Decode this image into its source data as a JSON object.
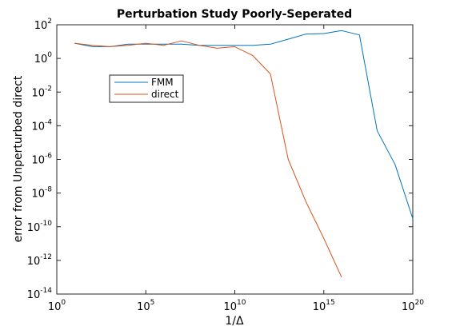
{
  "chart_data": {
    "type": "line",
    "title": "Perturbation Study Poorly-Seperated",
    "xlabel": "1/Δ",
    "ylabel": "error from Unperturbed direct",
    "x_scale": "log",
    "y_scale": "log",
    "xlim": [
      1,
      1e+20
    ],
    "ylim": [
      1e-14,
      100
    ],
    "x_ticks": [
      {
        "base": "10",
        "exp": "0",
        "value": 1
      },
      {
        "base": "10",
        "exp": "5",
        "value": 100000.0
      },
      {
        "base": "10",
        "exp": "10",
        "value": 10000000000.0
      },
      {
        "base": "10",
        "exp": "15",
        "value": 1000000000000000.0
      },
      {
        "base": "10",
        "exp": "20",
        "value": 1e+20
      }
    ],
    "y_ticks": [
      {
        "base": "10",
        "exp": "2",
        "value": 100
      },
      {
        "base": "10",
        "exp": "0",
        "value": 1
      },
      {
        "base": "10",
        "exp": "-2",
        "value": 0.01
      },
      {
        "base": "10",
        "exp": "-4",
        "value": 0.0001
      },
      {
        "base": "10",
        "exp": "-6",
        "value": 1e-06
      },
      {
        "base": "10",
        "exp": "-8",
        "value": 1e-08
      },
      {
        "base": "10",
        "exp": "-10",
        "value": 1e-10
      },
      {
        "base": "10",
        "exp": "-12",
        "value": 1e-12
      },
      {
        "base": "10",
        "exp": "-14",
        "value": 1e-14
      }
    ],
    "grid": false,
    "legend_position": "upper-left",
    "series": [
      {
        "name": "FMM",
        "color": "#0072BD",
        "x": [
          10.0,
          100.0,
          1000.0,
          10000.0,
          100000.0,
          1000000.0,
          10000000.0,
          100000000.0,
          1000000000.0,
          10000000000.0,
          100000000000.0,
          1000000000000.0,
          10000000000000.0,
          100000000000000.0,
          1000000000000000.0,
          1e+16,
          1e+17,
          1e+18,
          1e+19,
          1e+20
        ],
        "y": [
          8,
          5,
          5,
          7,
          7,
          7,
          7,
          6,
          6,
          6,
          6,
          7,
          14,
          28,
          30,
          45,
          25,
          5e-05,
          5e-07,
          3e-10
        ]
      },
      {
        "name": "direct",
        "color": "#D95319",
        "x": [
          10.0,
          100.0,
          1000.0,
          10000.0,
          100000.0,
          1000000.0,
          10000000.0,
          100000000.0,
          1000000000.0,
          10000000000.0,
          100000000000.0,
          1000000000000.0,
          10000000000000.0,
          100000000000000.0,
          1000000000000000.0,
          1e+16
        ],
        "y": [
          8,
          6,
          5,
          6,
          8,
          6,
          11,
          6,
          4,
          5,
          1.5,
          0.12,
          1e-06,
          3e-09,
          2e-11,
          1e-13
        ]
      }
    ]
  }
}
